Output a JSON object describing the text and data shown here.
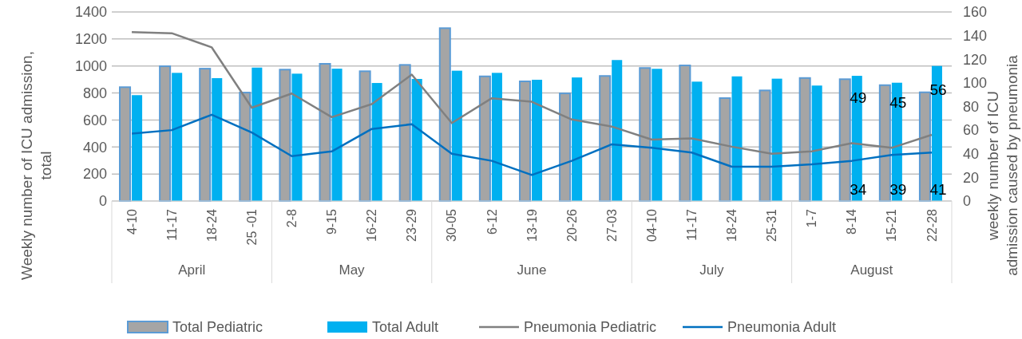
{
  "chart_data": {
    "type": "bar",
    "categories": [
      "4-10",
      "11-17",
      "18-24",
      "25 -01",
      "2-8",
      "9-15",
      "16-22",
      "23-29",
      "30-05",
      "6-12",
      "13-19",
      "20-26",
      "27-03",
      "04-10",
      "11-17",
      "18-24",
      "25-31",
      "1-7",
      "8-14",
      "15-21",
      "22-28"
    ],
    "series": [
      {
        "name": "Total Pediatric",
        "color": "#a5a5a5",
        "values": [
          843,
          998,
          980,
          803,
          973,
          1016,
          961,
          1008,
          1280,
          923,
          886,
          797,
          926,
          985,
          1004,
          762,
          819,
          911,
          902,
          858,
          805
        ]
      },
      {
        "name": "Total Adult",
        "color": "#00b0f0",
        "values": [
          784,
          949,
          910,
          988,
          943,
          980,
          874,
          904,
          965,
          949,
          898,
          915,
          1044,
          979,
          884,
          923,
          906,
          855,
          927,
          876,
          1000
        ]
      },
      {
        "name": "Pneumonia Pediatric",
        "type": "line",
        "axis": "y2",
        "color": "#808080",
        "values": [
          143,
          142,
          130,
          79,
          91,
          71,
          82,
          107,
          66,
          87,
          84,
          69,
          63,
          52,
          53,
          46,
          40,
          42,
          49,
          45,
          56
        ],
        "value_labels": [
          null,
          null,
          null,
          null,
          null,
          null,
          null,
          null,
          null,
          null,
          null,
          null,
          null,
          null,
          null,
          null,
          null,
          null,
          "49",
          "45",
          "56"
        ]
      },
      {
        "name": "Pneumonia Adult",
        "type": "line",
        "axis": "y2",
        "color": "#0070c0",
        "values": [
          57,
          60,
          73,
          58,
          38,
          42,
          61,
          65,
          40,
          34,
          22,
          34,
          48,
          45,
          41,
          29,
          29,
          31,
          34,
          39,
          41
        ],
        "value_labels": [
          null,
          null,
          null,
          null,
          null,
          null,
          null,
          null,
          null,
          null,
          null,
          null,
          null,
          null,
          null,
          null,
          null,
          null,
          "34",
          "39",
          "41"
        ]
      }
    ],
    "ylabel": "Weekly number of ICU admission, total",
    "y2label": "weekly number of ICU admission caused by pneumonia",
    "ylim": [
      0,
      1400
    ],
    "yticks": [
      0,
      200,
      400,
      600,
      800,
      1000,
      1200,
      1400
    ],
    "y2lim": [
      0,
      160
    ],
    "y2ticks": [
      0,
      20,
      40,
      60,
      80,
      100,
      120,
      140,
      160
    ],
    "annotations": [
      "April",
      "May",
      "June",
      "July",
      "August"
    ],
    "grid": "y",
    "legend": "bottom",
    "marker": "none",
    "line_style": "solid"
  }
}
